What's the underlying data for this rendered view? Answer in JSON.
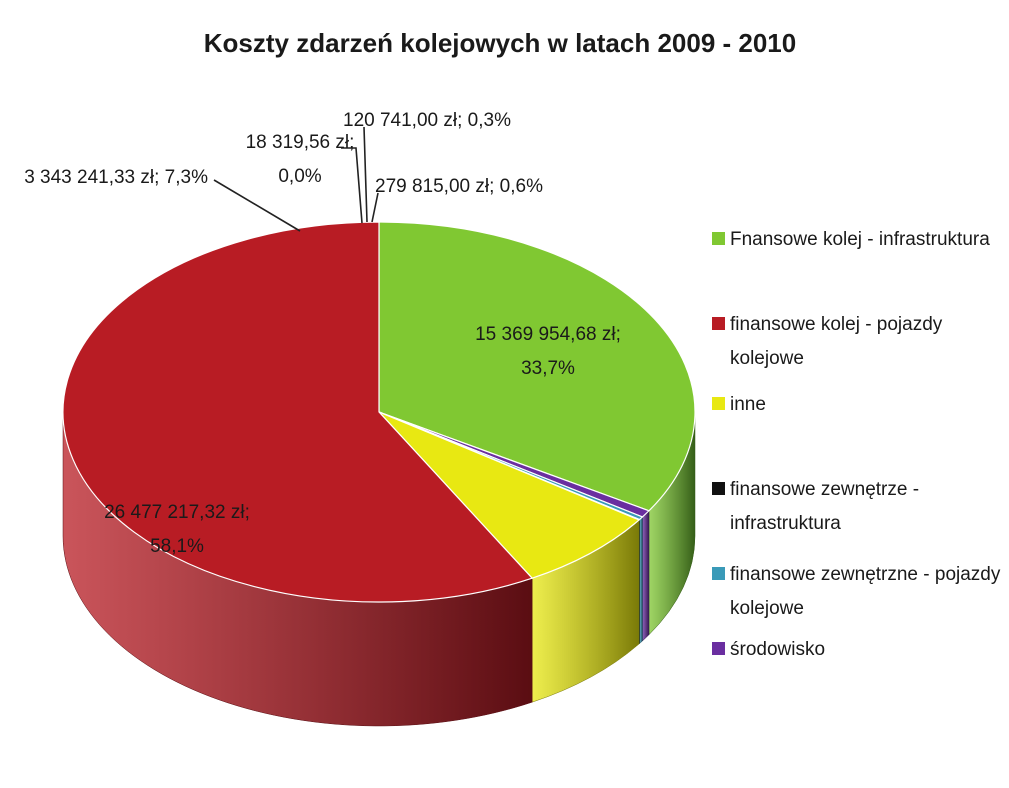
{
  "chart_data": {
    "type": "pie",
    "title": "Koszty zdarzeń kolejowych w latach 2009 - 2010",
    "series": [
      {
        "name": "Fnansowe kolej - infrastruktura",
        "value": 15369954.68,
        "label_lines": [
          "15 369 954,68 zł;",
          "33,7%"
        ],
        "color": "#80c832",
        "side": "#355e18"
      },
      {
        "name": "środowisko",
        "value": 279815.0,
        "label_lines": [
          "279 815,00 zł; 0,6%"
        ],
        "color": "#6a2ea0",
        "side": "#351650"
      },
      {
        "name": "finansowe zewnętrzne - pojazdy kolejowe",
        "value": 120741.0,
        "label_lines": [
          "120 741,00 zł; 0,3%"
        ],
        "color": "#3a9ab8",
        "side": "#1c4c5c"
      },
      {
        "name": "finansowe zewnętrze - infrastruktura",
        "value": 18319.56,
        "label_lines": [
          "18 319,56 zł;",
          "0,0%"
        ],
        "color": "#111111",
        "side": "#000000"
      },
      {
        "name": "inne",
        "value": 3343241.33,
        "label_lines": [
          "3 343 241,33 zł; 7,3%"
        ],
        "color": "#e8e812",
        "side": "#7a7a08"
      },
      {
        "name": "finansowe kolej - pojazdy kolejowe",
        "value": 26477217.32,
        "label_lines": [
          "26 477 217,32 zł;",
          "58,1%"
        ],
        "color": "#b81c24",
        "side": "#5a0d12"
      }
    ],
    "legend": [
      {
        "label_lines": [
          "Fnansowe kolej - infrastruktura"
        ],
        "color": "#80c832"
      },
      {
        "label_lines": [
          "finansowe kolej - pojazdy",
          "kolejowe"
        ],
        "color": "#b81c24"
      },
      {
        "label_lines": [
          "inne"
        ],
        "color": "#e8e812"
      },
      {
        "label_lines": [
          "finansowe zewnętrze -",
          "infrastruktura"
        ],
        "color": "#111111"
      },
      {
        "label_lines": [
          "finansowe zewnętrzne - pojazdy",
          "kolejowe"
        ],
        "color": "#3a9ab8"
      },
      {
        "label_lines": [
          "środowisko"
        ],
        "color": "#6a2ea0"
      }
    ],
    "legend_position": "right"
  }
}
